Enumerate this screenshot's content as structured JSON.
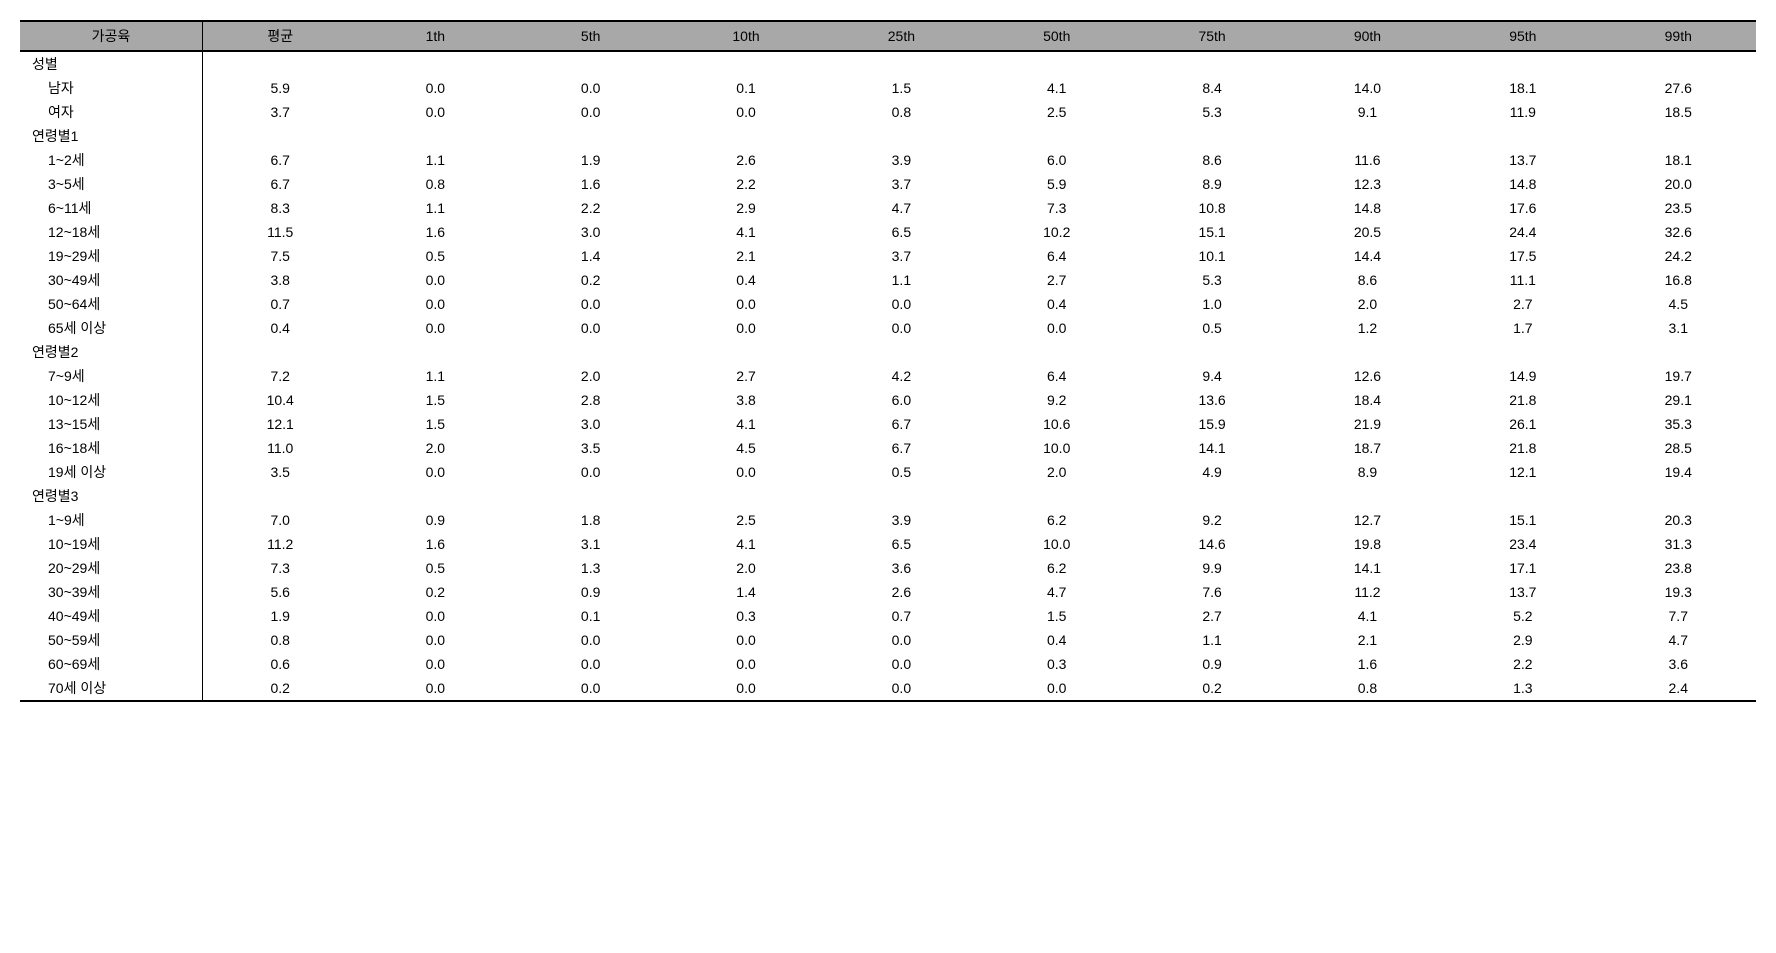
{
  "table": {
    "headers": [
      "가공육",
      "평균",
      "1th",
      "5th",
      "10th",
      "25th",
      "50th",
      "75th",
      "90th",
      "95th",
      "99th"
    ],
    "colors": {
      "header_bg": "#a8a8a8",
      "border": "#000000",
      "text": "#000000",
      "background": "#ffffff"
    },
    "sections": [
      {
        "group": "성별",
        "rows": [
          {
            "label": "남자",
            "values": [
              "5.9",
              "0.0",
              "0.0",
              "0.1",
              "1.5",
              "4.1",
              "8.4",
              "14.0",
              "18.1",
              "27.6"
            ]
          },
          {
            "label": "여자",
            "values": [
              "3.7",
              "0.0",
              "0.0",
              "0.0",
              "0.8",
              "2.5",
              "5.3",
              "9.1",
              "11.9",
              "18.5"
            ]
          }
        ]
      },
      {
        "group": "연령별1",
        "rows": [
          {
            "label": "1~2세",
            "values": [
              "6.7",
              "1.1",
              "1.9",
              "2.6",
              "3.9",
              "6.0",
              "8.6",
              "11.6",
              "13.7",
              "18.1"
            ]
          },
          {
            "label": "3~5세",
            "values": [
              "6.7",
              "0.8",
              "1.6",
              "2.2",
              "3.7",
              "5.9",
              "8.9",
              "12.3",
              "14.8",
              "20.0"
            ]
          },
          {
            "label": "6~11세",
            "values": [
              "8.3",
              "1.1",
              "2.2",
              "2.9",
              "4.7",
              "7.3",
              "10.8",
              "14.8",
              "17.6",
              "23.5"
            ]
          },
          {
            "label": "12~18세",
            "values": [
              "11.5",
              "1.6",
              "3.0",
              "4.1",
              "6.5",
              "10.2",
              "15.1",
              "20.5",
              "24.4",
              "32.6"
            ]
          },
          {
            "label": "19~29세",
            "values": [
              "7.5",
              "0.5",
              "1.4",
              "2.1",
              "3.7",
              "6.4",
              "10.1",
              "14.4",
              "17.5",
              "24.2"
            ]
          },
          {
            "label": "30~49세",
            "values": [
              "3.8",
              "0.0",
              "0.2",
              "0.4",
              "1.1",
              "2.7",
              "5.3",
              "8.6",
              "11.1",
              "16.8"
            ]
          },
          {
            "label": "50~64세",
            "values": [
              "0.7",
              "0.0",
              "0.0",
              "0.0",
              "0.0",
              "0.4",
              "1.0",
              "2.0",
              "2.7",
              "4.5"
            ]
          },
          {
            "label": "65세 이상",
            "values": [
              "0.4",
              "0.0",
              "0.0",
              "0.0",
              "0.0",
              "0.0",
              "0.5",
              "1.2",
              "1.7",
              "3.1"
            ]
          }
        ]
      },
      {
        "group": "연령별2",
        "rows": [
          {
            "label": "7~9세",
            "values": [
              "7.2",
              "1.1",
              "2.0",
              "2.7",
              "4.2",
              "6.4",
              "9.4",
              "12.6",
              "14.9",
              "19.7"
            ]
          },
          {
            "label": "10~12세",
            "values": [
              "10.4",
              "1.5",
              "2.8",
              "3.8",
              "6.0",
              "9.2",
              "13.6",
              "18.4",
              "21.8",
              "29.1"
            ]
          },
          {
            "label": "13~15세",
            "values": [
              "12.1",
              "1.5",
              "3.0",
              "4.1",
              "6.7",
              "10.6",
              "15.9",
              "21.9",
              "26.1",
              "35.3"
            ]
          },
          {
            "label": "16~18세",
            "values": [
              "11.0",
              "2.0",
              "3.5",
              "4.5",
              "6.7",
              "10.0",
              "14.1",
              "18.7",
              "21.8",
              "28.5"
            ]
          },
          {
            "label": "19세 이상",
            "values": [
              "3.5",
              "0.0",
              "0.0",
              "0.0",
              "0.5",
              "2.0",
              "4.9",
              "8.9",
              "12.1",
              "19.4"
            ]
          }
        ]
      },
      {
        "group": "연령별3",
        "rows": [
          {
            "label": "1~9세",
            "values": [
              "7.0",
              "0.9",
              "1.8",
              "2.5",
              "3.9",
              "6.2",
              "9.2",
              "12.7",
              "15.1",
              "20.3"
            ]
          },
          {
            "label": "10~19세",
            "values": [
              "11.2",
              "1.6",
              "3.1",
              "4.1",
              "6.5",
              "10.0",
              "14.6",
              "19.8",
              "23.4",
              "31.3"
            ]
          },
          {
            "label": "20~29세",
            "values": [
              "7.3",
              "0.5",
              "1.3",
              "2.0",
              "3.6",
              "6.2",
              "9.9",
              "14.1",
              "17.1",
              "23.8"
            ]
          },
          {
            "label": "30~39세",
            "values": [
              "5.6",
              "0.2",
              "0.9",
              "1.4",
              "2.6",
              "4.7",
              "7.6",
              "11.2",
              "13.7",
              "19.3"
            ]
          },
          {
            "label": "40~49세",
            "values": [
              "1.9",
              "0.0",
              "0.1",
              "0.3",
              "0.7",
              "1.5",
              "2.7",
              "4.1",
              "5.2",
              "7.7"
            ]
          },
          {
            "label": "50~59세",
            "values": [
              "0.8",
              "0.0",
              "0.0",
              "0.0",
              "0.0",
              "0.4",
              "1.1",
              "2.1",
              "2.9",
              "4.7"
            ]
          },
          {
            "label": "60~69세",
            "values": [
              "0.6",
              "0.0",
              "0.0",
              "0.0",
              "0.0",
              "0.3",
              "0.9",
              "1.6",
              "2.2",
              "3.6"
            ]
          },
          {
            "label": "70세 이상",
            "values": [
              "0.2",
              "0.0",
              "0.0",
              "0.0",
              "0.0",
              "0.0",
              "0.2",
              "0.8",
              "1.3",
              "2.4"
            ]
          }
        ]
      }
    ]
  }
}
